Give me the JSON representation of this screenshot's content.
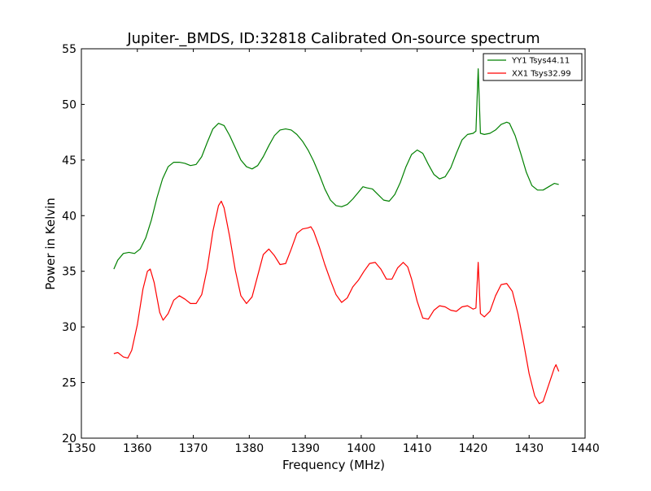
{
  "chart_data": {
    "type": "line",
    "title": "Jupiter-_BMDS, ID:32818 Calibrated On-source spectrum",
    "xlabel": "Frequency (MHz)",
    "ylabel": "Power in Kelvin",
    "xlim": [
      1350,
      1440
    ],
    "ylim": [
      20,
      55
    ],
    "xticks": [
      1350,
      1360,
      1370,
      1380,
      1390,
      1400,
      1410,
      1420,
      1430,
      1440
    ],
    "yticks": [
      20,
      25,
      30,
      35,
      40,
      45,
      50,
      55
    ],
    "grid": false,
    "legend_position": "top-right",
    "series": [
      {
        "name": "YY1 Tsys44.11",
        "color": "#008000",
        "points": [
          [
            1355.8,
            35.2
          ],
          [
            1356.5,
            36.0
          ],
          [
            1357.5,
            36.6
          ],
          [
            1358.5,
            36.7
          ],
          [
            1359.5,
            36.6
          ],
          [
            1360.5,
            37.0
          ],
          [
            1361.5,
            38.0
          ],
          [
            1362.5,
            39.6
          ],
          [
            1363.5,
            41.6
          ],
          [
            1364.5,
            43.3
          ],
          [
            1365.5,
            44.4
          ],
          [
            1366.5,
            44.8
          ],
          [
            1367.5,
            44.8
          ],
          [
            1368.5,
            44.7
          ],
          [
            1369.5,
            44.5
          ],
          [
            1370.5,
            44.6
          ],
          [
            1371.5,
            45.3
          ],
          [
            1372.5,
            46.6
          ],
          [
            1373.5,
            47.8
          ],
          [
            1374.5,
            48.3
          ],
          [
            1375.5,
            48.1
          ],
          [
            1376.5,
            47.2
          ],
          [
            1377.5,
            46.1
          ],
          [
            1378.5,
            45.0
          ],
          [
            1379.5,
            44.4
          ],
          [
            1380.5,
            44.2
          ],
          [
            1381.5,
            44.5
          ],
          [
            1382.5,
            45.3
          ],
          [
            1383.5,
            46.3
          ],
          [
            1384.5,
            47.2
          ],
          [
            1385.5,
            47.7
          ],
          [
            1386.5,
            47.8
          ],
          [
            1387.5,
            47.7
          ],
          [
            1388.5,
            47.3
          ],
          [
            1389.5,
            46.7
          ],
          [
            1390.5,
            45.9
          ],
          [
            1391.5,
            44.9
          ],
          [
            1392.5,
            43.7
          ],
          [
            1393.5,
            42.4
          ],
          [
            1394.5,
            41.4
          ],
          [
            1395.5,
            40.9
          ],
          [
            1396.5,
            40.8
          ],
          [
            1397.5,
            41.0
          ],
          [
            1398.5,
            41.5
          ],
          [
            1399.5,
            42.1
          ],
          [
            1400.3,
            42.6
          ],
          [
            1401.0,
            42.5
          ],
          [
            1402.0,
            42.4
          ],
          [
            1403.0,
            41.9
          ],
          [
            1404.0,
            41.4
          ],
          [
            1405.0,
            41.3
          ],
          [
            1406.0,
            41.9
          ],
          [
            1407.0,
            43.0
          ],
          [
            1408.0,
            44.4
          ],
          [
            1409.0,
            45.5
          ],
          [
            1410.0,
            45.9
          ],
          [
            1411.0,
            45.6
          ],
          [
            1412.0,
            44.6
          ],
          [
            1413.0,
            43.7
          ],
          [
            1414.0,
            43.3
          ],
          [
            1415.0,
            43.5
          ],
          [
            1416.0,
            44.3
          ],
          [
            1417.0,
            45.6
          ],
          [
            1418.0,
            46.8
          ],
          [
            1419.0,
            47.3
          ],
          [
            1420.0,
            47.4
          ],
          [
            1420.5,
            47.6
          ],
          [
            1420.9,
            53.2
          ],
          [
            1421.3,
            47.4
          ],
          [
            1422.0,
            47.3
          ],
          [
            1423.0,
            47.4
          ],
          [
            1424.0,
            47.7
          ],
          [
            1425.0,
            48.2
          ],
          [
            1426.0,
            48.4
          ],
          [
            1426.5,
            48.3
          ],
          [
            1427.5,
            47.2
          ],
          [
            1428.5,
            45.6
          ],
          [
            1429.5,
            43.9
          ],
          [
            1430.5,
            42.7
          ],
          [
            1431.5,
            42.3
          ],
          [
            1432.5,
            42.3
          ],
          [
            1433.5,
            42.6
          ],
          [
            1434.5,
            42.9
          ],
          [
            1435.3,
            42.8
          ]
        ]
      },
      {
        "name": "XX1 Tsys32.99",
        "color": "#ff0000",
        "points": [
          [
            1355.8,
            27.6
          ],
          [
            1356.5,
            27.7
          ],
          [
            1357.5,
            27.3
          ],
          [
            1358.3,
            27.2
          ],
          [
            1359.0,
            27.9
          ],
          [
            1360.0,
            30.2
          ],
          [
            1361.0,
            33.4
          ],
          [
            1361.8,
            35.0
          ],
          [
            1362.3,
            35.2
          ],
          [
            1363.0,
            34.0
          ],
          [
            1364.0,
            31.3
          ],
          [
            1364.6,
            30.6
          ],
          [
            1365.5,
            31.2
          ],
          [
            1366.5,
            32.4
          ],
          [
            1367.5,
            32.8
          ],
          [
            1368.5,
            32.5
          ],
          [
            1369.5,
            32.1
          ],
          [
            1370.5,
            32.1
          ],
          [
            1371.5,
            32.9
          ],
          [
            1372.5,
            35.3
          ],
          [
            1373.5,
            38.6
          ],
          [
            1374.5,
            40.9
          ],
          [
            1375.0,
            41.3
          ],
          [
            1375.5,
            40.7
          ],
          [
            1376.5,
            38.1
          ],
          [
            1377.5,
            35.1
          ],
          [
            1378.5,
            32.8
          ],
          [
            1379.5,
            32.1
          ],
          [
            1380.5,
            32.7
          ],
          [
            1381.5,
            34.6
          ],
          [
            1382.5,
            36.5
          ],
          [
            1383.5,
            37.0
          ],
          [
            1384.5,
            36.4
          ],
          [
            1385.5,
            35.6
          ],
          [
            1386.5,
            35.7
          ],
          [
            1387.5,
            37.0
          ],
          [
            1388.5,
            38.4
          ],
          [
            1389.5,
            38.8
          ],
          [
            1390.5,
            38.9
          ],
          [
            1391.0,
            39.0
          ],
          [
            1391.5,
            38.6
          ],
          [
            1392.5,
            37.2
          ],
          [
            1393.5,
            35.6
          ],
          [
            1394.5,
            34.2
          ],
          [
            1395.5,
            32.9
          ],
          [
            1396.5,
            32.2
          ],
          [
            1397.5,
            32.6
          ],
          [
            1398.5,
            33.6
          ],
          [
            1399.5,
            34.2
          ],
          [
            1400.5,
            35.0
          ],
          [
            1401.5,
            35.7
          ],
          [
            1402.5,
            35.8
          ],
          [
            1403.5,
            35.2
          ],
          [
            1404.5,
            34.3
          ],
          [
            1405.5,
            34.3
          ],
          [
            1406.5,
            35.3
          ],
          [
            1407.5,
            35.8
          ],
          [
            1408.3,
            35.4
          ],
          [
            1409.0,
            34.3
          ],
          [
            1410.0,
            32.3
          ],
          [
            1411.0,
            30.8
          ],
          [
            1412.0,
            30.7
          ],
          [
            1413.0,
            31.5
          ],
          [
            1414.0,
            31.9
          ],
          [
            1415.0,
            31.8
          ],
          [
            1416.0,
            31.5
          ],
          [
            1417.0,
            31.4
          ],
          [
            1418.0,
            31.8
          ],
          [
            1419.0,
            31.9
          ],
          [
            1420.0,
            31.6
          ],
          [
            1420.5,
            31.7
          ],
          [
            1420.9,
            35.8
          ],
          [
            1421.3,
            31.2
          ],
          [
            1422.0,
            30.9
          ],
          [
            1423.0,
            31.4
          ],
          [
            1424.0,
            32.8
          ],
          [
            1425.0,
            33.8
          ],
          [
            1426.0,
            33.9
          ],
          [
            1427.0,
            33.2
          ],
          [
            1428.0,
            31.2
          ],
          [
            1429.0,
            28.6
          ],
          [
            1430.0,
            25.8
          ],
          [
            1431.0,
            23.8
          ],
          [
            1431.8,
            23.1
          ],
          [
            1432.5,
            23.3
          ],
          [
            1433.5,
            24.8
          ],
          [
            1434.5,
            26.3
          ],
          [
            1434.8,
            26.6
          ],
          [
            1435.3,
            26.0
          ]
        ]
      }
    ]
  }
}
